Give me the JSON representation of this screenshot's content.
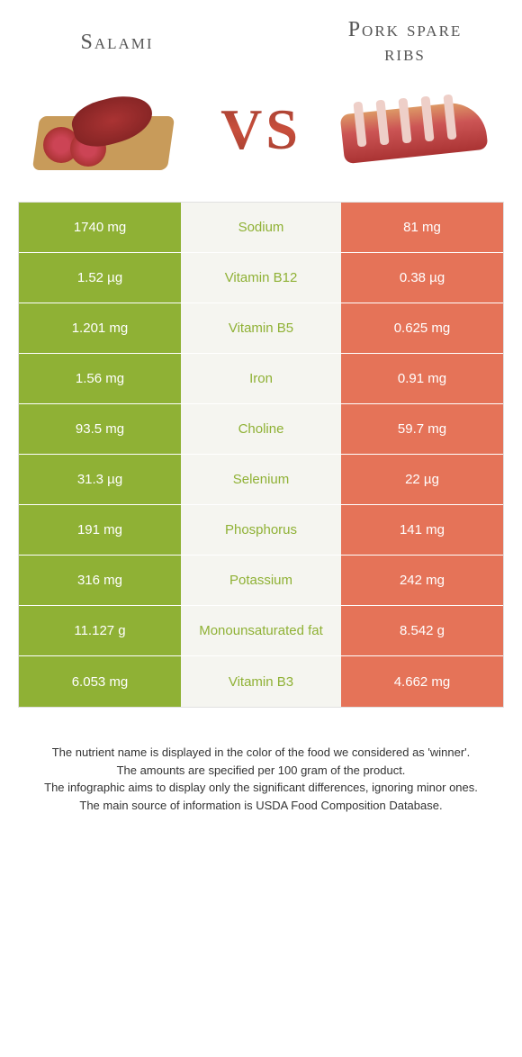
{
  "header": {
    "left_title": "Salami",
    "right_title": "Pork spare ribs",
    "vs": "VS"
  },
  "colors": {
    "green": "#8fb135",
    "coral": "#e57358",
    "mid_bg": "#f5f5f0",
    "page_bg": "#ffffff",
    "text": "#333333"
  },
  "table": {
    "left_bg": "green",
    "right_bg": "coral",
    "rows": [
      {
        "nutrient": "Sodium",
        "left": "1740 mg",
        "right": "81 mg",
        "winner": "green"
      },
      {
        "nutrient": "Vitamin B12",
        "left": "1.52 µg",
        "right": "0.38 µg",
        "winner": "green"
      },
      {
        "nutrient": "Vitamin B5",
        "left": "1.201 mg",
        "right": "0.625 mg",
        "winner": "green"
      },
      {
        "nutrient": "Iron",
        "left": "1.56 mg",
        "right": "0.91 mg",
        "winner": "green"
      },
      {
        "nutrient": "Choline",
        "left": "93.5 mg",
        "right": "59.7 mg",
        "winner": "green"
      },
      {
        "nutrient": "Selenium",
        "left": "31.3 µg",
        "right": "22 µg",
        "winner": "green"
      },
      {
        "nutrient": "Phosphorus",
        "left": "191 mg",
        "right": "141 mg",
        "winner": "green"
      },
      {
        "nutrient": "Potassium",
        "left": "316 mg",
        "right": "242 mg",
        "winner": "green"
      },
      {
        "nutrient": "Monounsaturated fat",
        "left": "11.127 g",
        "right": "8.542 g",
        "winner": "green"
      },
      {
        "nutrient": "Vitamin B3",
        "left": "6.053 mg",
        "right": "4.662 mg",
        "winner": "green"
      }
    ]
  },
  "footnotes": [
    "The nutrient name is displayed in the color of the food we considered as 'winner'.",
    "The amounts are specified per 100 gram of the product.",
    "The infographic aims to display only the significant differences, ignoring minor ones.",
    "The main source of information is USDA Food Composition Database."
  ]
}
